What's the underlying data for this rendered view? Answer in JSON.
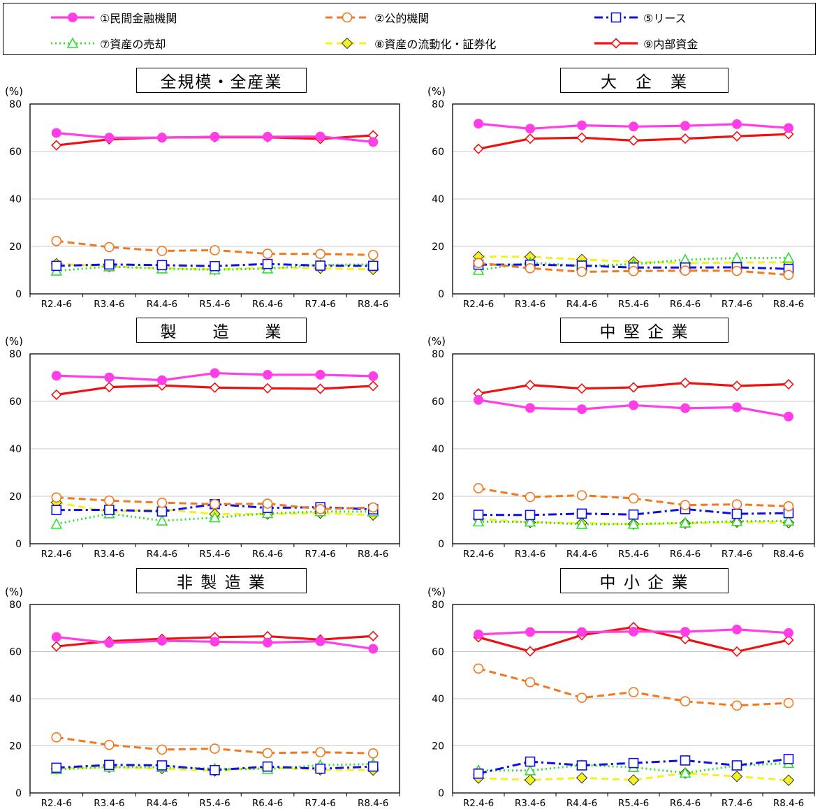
{
  "legend": [
    {
      "id": "s1",
      "label": "①民間金融機関",
      "color": "#FF3EE6",
      "dash": "solid",
      "marker": "circle-filled"
    },
    {
      "id": "s2",
      "label": "②公的機関",
      "color": "#F07820",
      "dash": "dash",
      "marker": "circle-open"
    },
    {
      "id": "s5",
      "label": "⑤リース",
      "color": "#1010E0",
      "dash": "dashdot",
      "marker": "square-open"
    },
    {
      "id": "s7",
      "label": "⑦資産の売却",
      "color": "#33DD33",
      "dash": "dot",
      "marker": "triangle-open"
    },
    {
      "id": "s8",
      "label": "⑧資産の流動化・証券化",
      "color": "#F5F020",
      "dash": "dash",
      "marker": "diamond-filled"
    },
    {
      "id": "s9",
      "label": "⑨内部資金",
      "color": "#EE1111",
      "dash": "solid",
      "marker": "diamond-open"
    }
  ],
  "unit": "(%)",
  "chart_data": [
    {
      "type": "line",
      "title": "全規模・全産業",
      "categories": [
        "R2.4-6",
        "R3.4-6",
        "R4.4-6",
        "R5.4-6",
        "R6.4-6",
        "R7.4-6",
        "R8.4-6"
      ],
      "ylim": [
        0,
        80
      ],
      "yticks": [
        0,
        20,
        40,
        60,
        80
      ],
      "grid": true,
      "series": [
        {
          "name": "①民間金融機関",
          "values": [
            67.8,
            65.8,
            65.8,
            66.2,
            66.2,
            66.3,
            64.0
          ]
        },
        {
          "name": "②公的機関",
          "values": [
            22.3,
            19.7,
            18.1,
            18.4,
            16.9,
            16.8,
            16.4
          ]
        },
        {
          "name": "⑤リース",
          "values": [
            11.8,
            12.4,
            12.1,
            11.7,
            12.6,
            11.9,
            11.8
          ]
        },
        {
          "name": "⑦資産の売却",
          "values": [
            9.7,
            11.5,
            10.6,
            10.2,
            10.6,
            12.2,
            12.4
          ]
        },
        {
          "name": "⑧資産の流動化・証券化",
          "values": [
            12.7,
            11.5,
            10.9,
            10.3,
            11.1,
            10.8,
            10.3
          ]
        },
        {
          "name": "⑨内部資金",
          "values": [
            62.6,
            65.1,
            65.9,
            66.0,
            66.0,
            65.3,
            66.8
          ]
        }
      ]
    },
    {
      "type": "line",
      "title": "大　企　業",
      "categories": [
        "R2.4-6",
        "R3.4-6",
        "R4.4-6",
        "R5.4-6",
        "R6.4-6",
        "R7.4-6",
        "R8.4-6"
      ],
      "ylim": [
        0,
        80
      ],
      "yticks": [
        0,
        20,
        40,
        60,
        80
      ],
      "grid": true,
      "series": [
        {
          "name": "①民間金融機関",
          "values": [
            71.7,
            69.6,
            71.0,
            70.5,
            70.8,
            71.5,
            69.9
          ]
        },
        {
          "name": "②公的機関",
          "values": [
            13.0,
            10.8,
            9.3,
            9.6,
            9.8,
            9.7,
            8.0
          ]
        },
        {
          "name": "⑤リース",
          "values": [
            12.3,
            12.3,
            11.9,
            11.1,
            11.1,
            11.2,
            10.5
          ]
        },
        {
          "name": "⑦資産の売却",
          "values": [
            10.0,
            13.1,
            11.8,
            12.5,
            14.4,
            15.1,
            15.2
          ]
        },
        {
          "name": "⑧資産の流動化・証券化",
          "values": [
            15.7,
            15.6,
            14.5,
            13.5,
            13.0,
            13.2,
            13.3
          ]
        },
        {
          "name": "⑨内部資金",
          "values": [
            61.1,
            65.4,
            65.8,
            64.6,
            65.4,
            66.4,
            67.3
          ]
        }
      ]
    },
    {
      "type": "line",
      "title": "製　　造　　業",
      "categories": [
        "R2.4-6",
        "R3.4-6",
        "R4.4-6",
        "R5.4-6",
        "R6.4-6",
        "R7.4-6",
        "R8.4-6"
      ],
      "ylim": [
        0,
        80
      ],
      "yticks": [
        0,
        20,
        40,
        60,
        80
      ],
      "grid": true,
      "series": [
        {
          "name": "①民間金融機関",
          "values": [
            70.8,
            70.1,
            68.9,
            71.9,
            71.2,
            71.2,
            70.6
          ]
        },
        {
          "name": "②公的機関",
          "values": [
            19.5,
            18.2,
            17.3,
            16.7,
            16.9,
            14.6,
            15.3
          ]
        },
        {
          "name": "⑤リース",
          "values": [
            14.2,
            14.3,
            13.6,
            16.7,
            15.1,
            15.4,
            14.5
          ]
        },
        {
          "name": "⑦資産の売却",
          "values": [
            8.3,
            12.7,
            9.7,
            11.0,
            12.8,
            13.6,
            13.5
          ]
        },
        {
          "name": "⑧資産の流動化・証券化",
          "values": [
            17.4,
            13.4,
            14.5,
            12.5,
            12.5,
            12.9,
            12.1
          ]
        },
        {
          "name": "⑨内部資金",
          "values": [
            62.8,
            66.0,
            66.7,
            65.8,
            65.5,
            65.3,
            66.5
          ]
        }
      ]
    },
    {
      "type": "line",
      "title": "中 堅 企 業",
      "categories": [
        "R2.4-6",
        "R3.4-6",
        "R4.4-6",
        "R5.4-6",
        "R6.4-6",
        "R7.4-6",
        "R8.4-6"
      ],
      "ylim": [
        0,
        80
      ],
      "yticks": [
        0,
        20,
        40,
        60,
        80
      ],
      "grid": true,
      "series": [
        {
          "name": "①民間金融機関",
          "values": [
            60.6,
            57.2,
            56.7,
            58.4,
            57.1,
            57.5,
            53.6
          ]
        },
        {
          "name": "②公的機関",
          "values": [
            23.4,
            19.7,
            20.4,
            19.1,
            16.3,
            16.6,
            15.8
          ]
        },
        {
          "name": "⑤リース",
          "values": [
            12.2,
            12.1,
            12.7,
            12.3,
            14.6,
            12.6,
            12.9
          ]
        },
        {
          "name": "⑦資産の売却",
          "values": [
            9.3,
            9.2,
            8.2,
            8.3,
            8.8,
            9.5,
            9.6
          ]
        },
        {
          "name": "⑧資産の流動化・証券化",
          "values": [
            10.5,
            9.0,
            8.7,
            8.3,
            8.6,
            9.1,
            8.9
          ]
        },
        {
          "name": "⑨内部資金",
          "values": [
            63.3,
            66.9,
            65.4,
            65.9,
            67.8,
            66.5,
            67.2
          ]
        }
      ]
    },
    {
      "type": "line",
      "title": "非 製 造 業",
      "categories": [
        "R2.4-6",
        "R3.4-6",
        "R4.4-6",
        "R5.4-6",
        "R6.4-6",
        "R7.4-6",
        "R8.4-6"
      ],
      "ylim": [
        0,
        80
      ],
      "yticks": [
        0,
        20,
        40,
        60,
        80
      ],
      "grid": true,
      "series": [
        {
          "name": "①民間金融機関",
          "values": [
            66.2,
            63.7,
            64.6,
            64.2,
            63.8,
            64.4,
            61.2
          ]
        },
        {
          "name": "②公的機関",
          "values": [
            23.6,
            20.4,
            18.4,
            18.8,
            16.9,
            17.3,
            16.8
          ]
        },
        {
          "name": "⑤リース",
          "values": [
            10.7,
            11.9,
            11.7,
            9.7,
            11.2,
            10.3,
            11.2
          ]
        },
        {
          "name": "⑦資産の売却",
          "values": [
            10.0,
            11.0,
            10.9,
            10.3,
            10.1,
            11.8,
            12.3
          ]
        },
        {
          "name": "⑧資産の流動化・証券化",
          "values": [
            10.3,
            10.9,
            10.4,
            9.3,
            10.8,
            9.8,
            9.7
          ]
        },
        {
          "name": "⑨内部資金",
          "values": [
            62.2,
            64.4,
            65.4,
            66.1,
            66.5,
            65.1,
            66.6
          ]
        }
      ]
    },
    {
      "type": "line",
      "title": "中 小 企 業",
      "categories": [
        "R2.4-6",
        "R3.4-6",
        "R4.4-6",
        "R5.4-6",
        "R6.4-6",
        "R7.4-6",
        "R8.4-6"
      ],
      "ylim": [
        0,
        80
      ],
      "yticks": [
        0,
        20,
        40,
        60,
        80
      ],
      "grid": true,
      "series": [
        {
          "name": "①民間金融機関",
          "values": [
            67.3,
            68.3,
            68.3,
            68.5,
            68.4,
            69.4,
            67.9
          ]
        },
        {
          "name": "②公的機関",
          "values": [
            52.8,
            47.0,
            40.4,
            42.8,
            38.9,
            37.1,
            38.2
          ]
        },
        {
          "name": "⑤リース",
          "values": [
            8.2,
            13.3,
            11.7,
            12.7,
            13.8,
            11.7,
            14.4
          ]
        },
        {
          "name": "⑦資産の売却",
          "values": [
            9.6,
            9.5,
            11.8,
            10.9,
            8.5,
            11.6,
            12.6
          ]
        },
        {
          "name": "⑧資産の流動化・証券化",
          "values": [
            6.3,
            5.5,
            6.4,
            5.5,
            8.4,
            7.0,
            5.4
          ]
        },
        {
          "name": "⑨内部資金",
          "values": [
            66.1,
            60.1,
            67.0,
            70.4,
            65.3,
            60.0,
            64.9
          ]
        }
      ]
    }
  ]
}
